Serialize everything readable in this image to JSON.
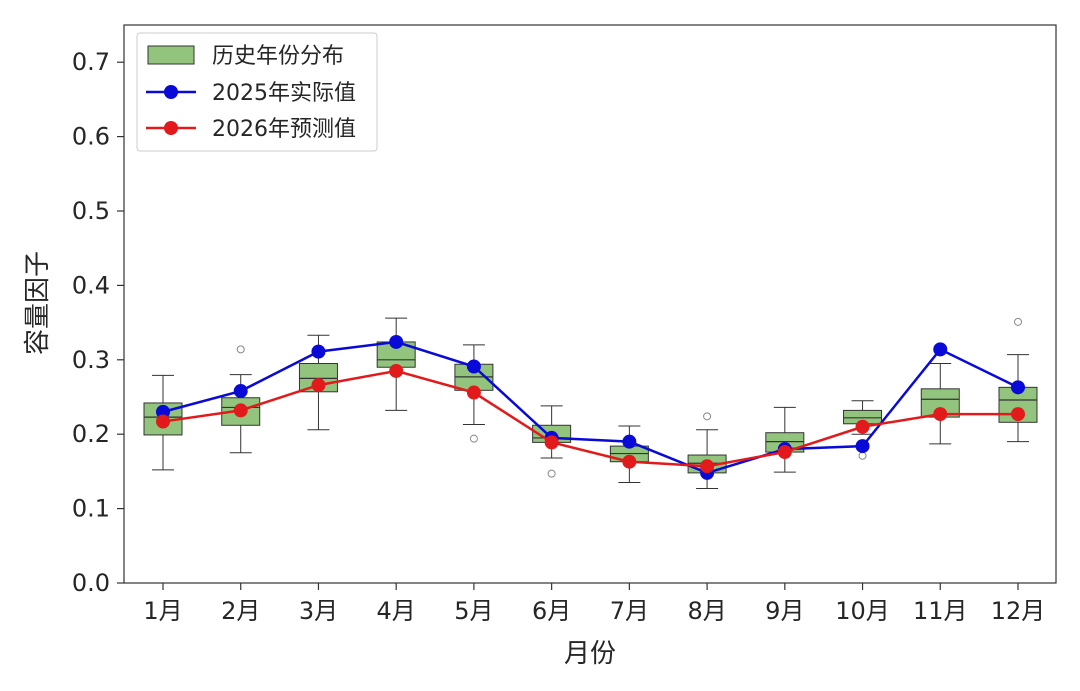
{
  "chart_data": {
    "type": "box",
    "title": "",
    "xlabel": "月份",
    "ylabel": "容量因子",
    "ylim": [
      0.0,
      0.75
    ],
    "yticks": [
      "0.0",
      "0.1",
      "0.2",
      "0.3",
      "0.4",
      "0.5",
      "0.6",
      "0.7"
    ],
    "categories": [
      "1月",
      "2月",
      "3月",
      "4月",
      "5月",
      "6月",
      "7月",
      "8月",
      "9月",
      "10月",
      "11月",
      "12月"
    ],
    "box_series": {
      "name": "历史年份分布",
      "color": "#93c47d",
      "boxes": [
        {
          "whisker_low": 0.152,
          "q1": 0.199,
          "median": 0.223,
          "q3": 0.242,
          "whisker_high": 0.279,
          "outliers": []
        },
        {
          "whisker_low": 0.175,
          "q1": 0.212,
          "median": 0.236,
          "q3": 0.249,
          "whisker_high": 0.28,
          "outliers": [
            0.314
          ]
        },
        {
          "whisker_low": 0.206,
          "q1": 0.257,
          "median": 0.275,
          "q3": 0.295,
          "whisker_high": 0.333,
          "outliers": []
        },
        {
          "whisker_low": 0.232,
          "q1": 0.29,
          "median": 0.3,
          "q3": 0.324,
          "whisker_high": 0.356,
          "outliers": []
        },
        {
          "whisker_low": 0.213,
          "q1": 0.259,
          "median": 0.277,
          "q3": 0.294,
          "whisker_high": 0.32,
          "outliers": [
            0.194
          ]
        },
        {
          "whisker_low": 0.168,
          "q1": 0.189,
          "median": 0.195,
          "q3": 0.212,
          "whisker_high": 0.238,
          "outliers": [
            0.147
          ]
        },
        {
          "whisker_low": 0.135,
          "q1": 0.163,
          "median": 0.174,
          "q3": 0.184,
          "whisker_high": 0.211,
          "outliers": []
        },
        {
          "whisker_low": 0.127,
          "q1": 0.148,
          "median": 0.161,
          "q3": 0.172,
          "whisker_high": 0.206,
          "outliers": [
            0.224
          ]
        },
        {
          "whisker_low": 0.149,
          "q1": 0.176,
          "median": 0.19,
          "q3": 0.202,
          "whisker_high": 0.236,
          "outliers": []
        },
        {
          "whisker_low": 0.2,
          "q1": 0.214,
          "median": 0.222,
          "q3": 0.232,
          "whisker_high": 0.245,
          "outliers": [
            0.171
          ]
        },
        {
          "whisker_low": 0.187,
          "q1": 0.223,
          "median": 0.247,
          "q3": 0.261,
          "whisker_high": 0.295,
          "outliers": []
        },
        {
          "whisker_low": 0.19,
          "q1": 0.216,
          "median": 0.246,
          "q3": 0.263,
          "whisker_high": 0.307,
          "outliers": [
            0.351
          ]
        }
      ]
    },
    "series": [
      {
        "name": "2025年实际值",
        "color": "#0a0ad8",
        "values": [
          0.23,
          0.258,
          0.311,
          0.324,
          0.291,
          0.195,
          0.19,
          0.148,
          0.18,
          0.184,
          0.314,
          0.263
        ]
      },
      {
        "name": "2026年预测值",
        "color": "#e31a1c",
        "values": [
          0.217,
          0.232,
          0.266,
          0.285,
          0.256,
          0.189,
          0.163,
          0.157,
          0.176,
          0.21,
          0.227,
          0.227
        ]
      }
    ],
    "legend": {
      "position": "top-left",
      "entries": [
        "历史年份分布",
        "2025年实际值",
        "2026年预测值"
      ]
    },
    "grid": false
  }
}
